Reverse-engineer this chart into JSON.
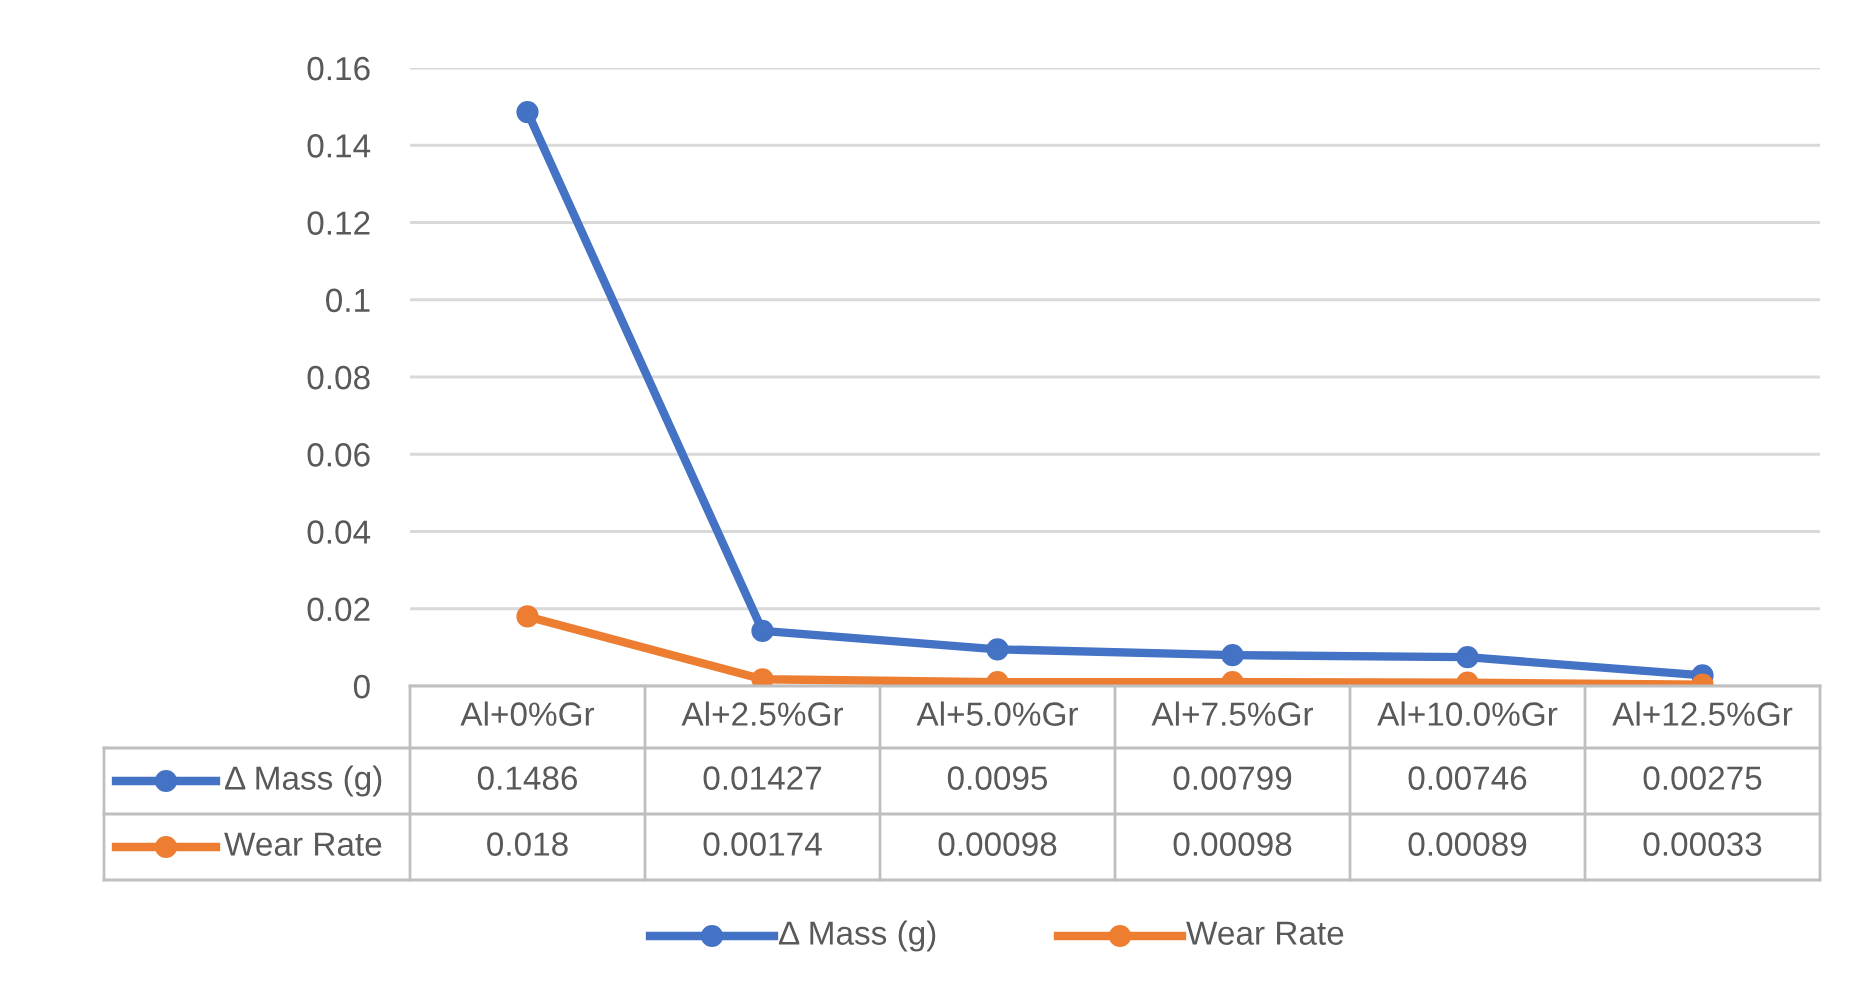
{
  "chart_data": {
    "type": "line",
    "categories": [
      "Al+0%Gr",
      "Al+2.5%Gr",
      "Al+5.0%Gr",
      "Al+7.5%Gr",
      "Al+10.0%Gr",
      "Al+12.5%Gr"
    ],
    "series": [
      {
        "name": "Δ Mass (g)",
        "color": "#4472c4",
        "values": [
          0.1486,
          0.01427,
          0.0095,
          0.00799,
          0.00746,
          0.00275
        ]
      },
      {
        "name": "Wear Rate",
        "color": "#ed7d31",
        "values": [
          0.018,
          0.00174,
          0.00098,
          0.00098,
          0.00089,
          0.00033
        ]
      }
    ],
    "ylim": [
      0,
      0.16
    ],
    "yticks": [
      0,
      0.02,
      0.04,
      0.06,
      0.08,
      0.1,
      0.12,
      0.14,
      0.16
    ],
    "grid": "y",
    "legend": "bottom",
    "marker": "circle",
    "line_style": "solid",
    "data_labels": true
  }
}
